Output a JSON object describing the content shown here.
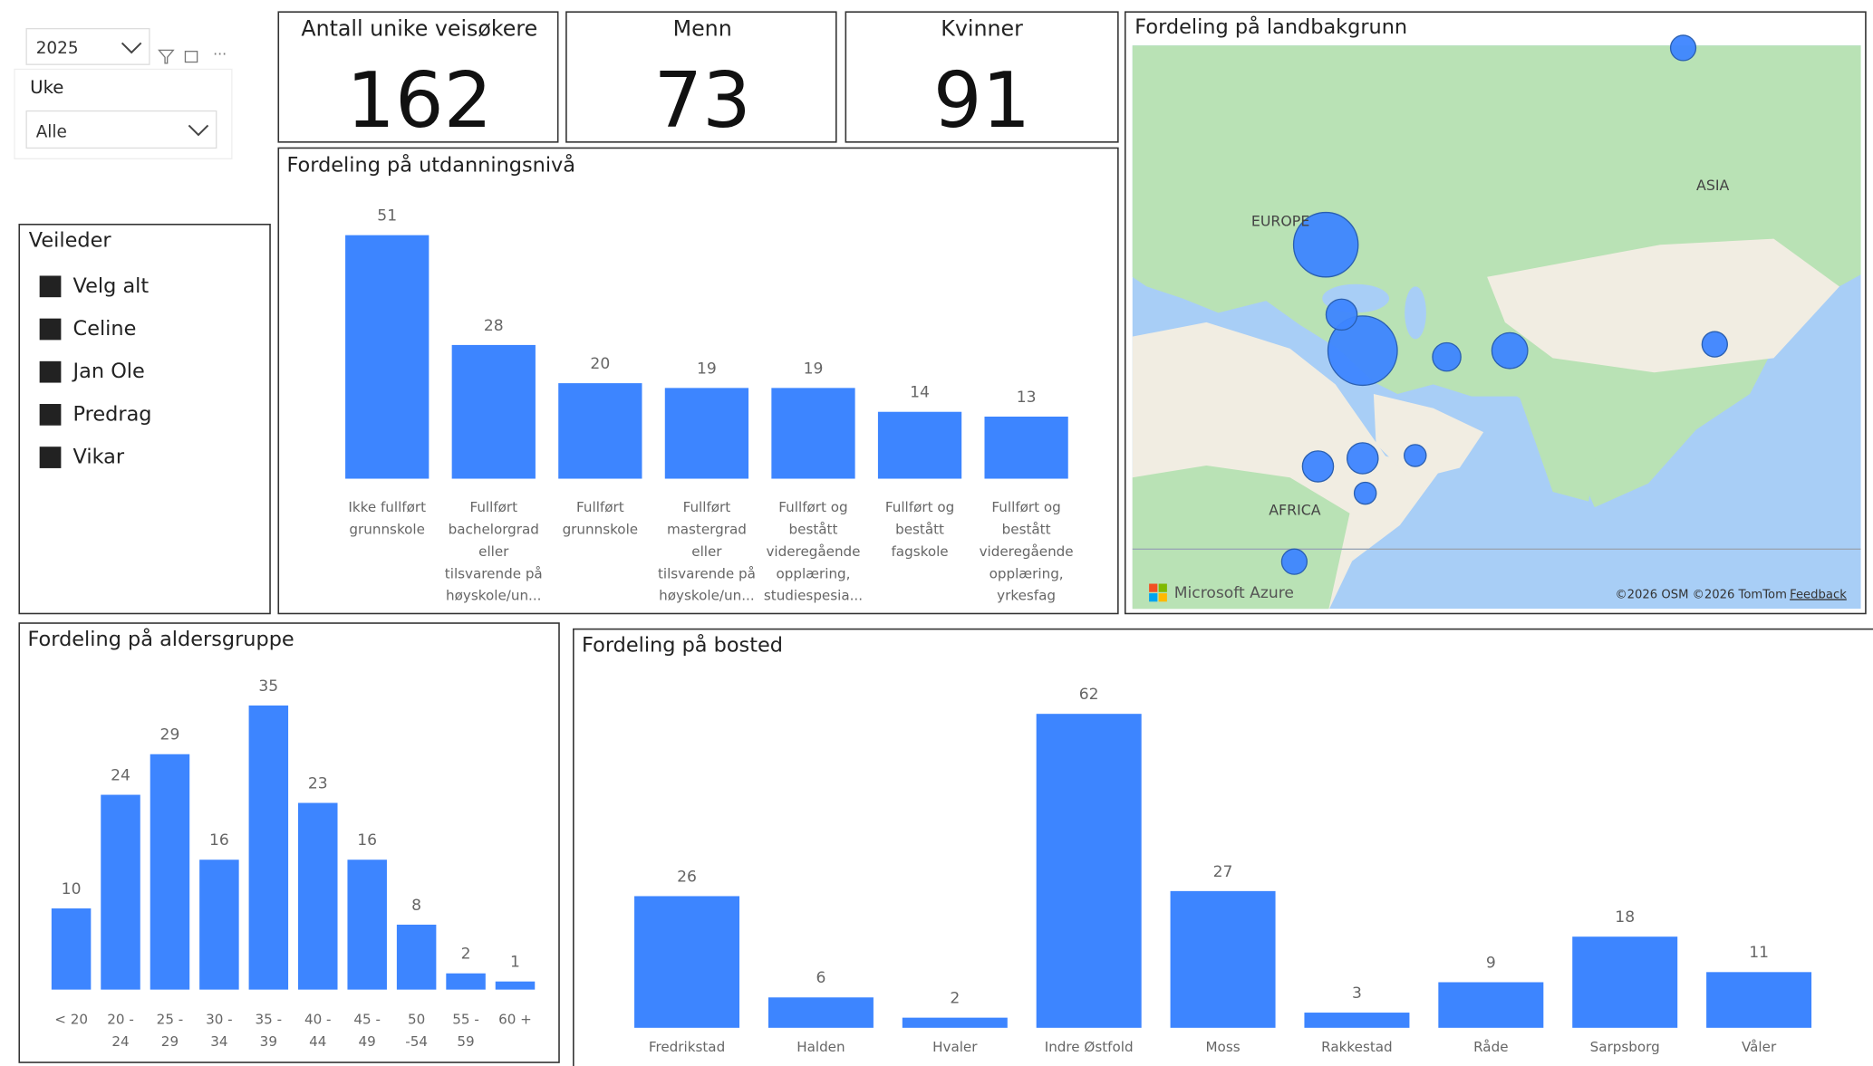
{
  "filters": {
    "year": "2025",
    "week_label": "Uke",
    "week": "Alle"
  },
  "veileder": {
    "title": "Veileder",
    "items": [
      "Velg alt",
      "Celine",
      "Jan Ole",
      "Predrag",
      "Vikar"
    ]
  },
  "cards": [
    {
      "label": "Antall unike veisøkere",
      "value": 162
    },
    {
      "label": "Menn",
      "value": 73
    },
    {
      "label": "Kvinner",
      "value": 91
    }
  ],
  "charts": [
    {
      "type": "bar",
      "title": "Fordeling på utdanningsnivå",
      "color": "#3d85ff",
      "categories": [
        "Ikke fullført grunnskole",
        "Fullført bachelorgrad eller tilsvarende på høyskole/un...",
        "Fullført grunnskole",
        "Fullført mastergrad eller tilsvarende på høyskole/un...",
        "Fullført og bestått videregående opplæring, studiespesia...",
        "Fullført og bestått fagskole",
        "Fullført og bestått videregående opplæring, yrkesfag"
      ],
      "values": [
        51,
        28,
        20,
        19,
        19,
        14,
        13
      ]
    },
    {
      "type": "bar",
      "title": "Fordeling på aldersgruppe",
      "color": "#3d85ff",
      "categories": [
        "< 20",
        "20 - 24",
        "25 - 29",
        "30 - 34",
        "35 - 39",
        "40 - 44",
        "45 - 49",
        "50 -54",
        "55 - 59",
        "60 +"
      ],
      "values": [
        10,
        24,
        29,
        16,
        35,
        23,
        16,
        8,
        2,
        1
      ]
    },
    {
      "type": "bar",
      "title": "Fordeling på bosted",
      "color": "#3d85ff",
      "categories": [
        "Fredrikstad",
        "Halden",
        "Hvaler",
        "Indre Østfold",
        "Moss",
        "Rakkestad",
        "Råde",
        "Sarpsborg",
        "Våler"
      ],
      "values": [
        26,
        6,
        2,
        62,
        27,
        3,
        9,
        18,
        11
      ]
    }
  ],
  "map": {
    "title": "Fordeling på landbakgrunn",
    "regions": [
      "EUROPE",
      "ASIA",
      "AFRICA"
    ],
    "brand": "Microsoft Azure",
    "attribution": "©2026 OSM ©2026 TomTom",
    "feedback": "Feedback",
    "color": "#3d85ff",
    "bubbles": [
      {
        "lon": 31,
        "lat": 49,
        "value": 26
      },
      {
        "lon": 38,
        "lat": 34,
        "value": 30
      },
      {
        "lon": 34,
        "lat": 39.5,
        "value": 6
      },
      {
        "lon": 54,
        "lat": 33,
        "value": 5
      },
      {
        "lon": 66,
        "lat": 34,
        "value": 8
      },
      {
        "lon": 105,
        "lat": 35,
        "value": 4
      },
      {
        "lon": 99,
        "lat": 68,
        "value": 4
      },
      {
        "lon": 38,
        "lat": 15.5,
        "value": 6
      },
      {
        "lon": 29.5,
        "lat": 14,
        "value": 6
      },
      {
        "lon": 48,
        "lat": 16,
        "value": 3
      },
      {
        "lon": 38.5,
        "lat": 9,
        "value": 3
      },
      {
        "lon": 25,
        "lat": -4,
        "value": 4
      }
    ]
  }
}
